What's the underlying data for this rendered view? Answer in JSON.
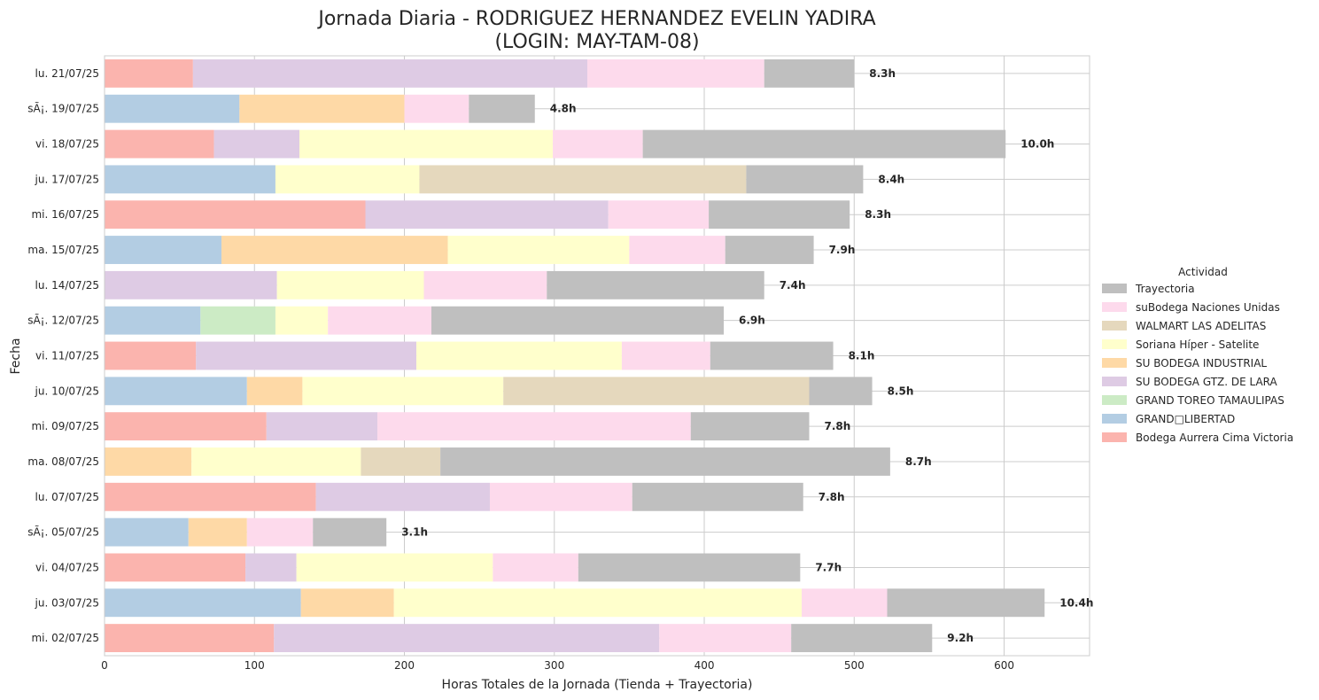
{
  "chart_data": {
    "type": "bar",
    "orientation": "horizontal",
    "stacked": true,
    "title": "Jornada Diaria - RODRIGUEZ HERNANDEZ EVELIN YADIRA",
    "subtitle": "(LOGIN: MAY-TAM-08)",
    "xlabel": "Horas Totales de la Jornada (Tienda + Trayectoria)",
    "ylabel": "Fecha",
    "xlim": [
      0,
      657
    ],
    "xticks": [
      0,
      100,
      200,
      300,
      400,
      500,
      600
    ],
    "grid": true,
    "legend": {
      "title": "Actividad",
      "placement": "center-right",
      "entries": [
        "Trayectoria",
        "suBodega Naciones Unidas",
        "WALMART LAS ADELITAS",
        "Soriana Híper - Satelite",
        "SU BODEGA INDUSTRIAL",
        "SU BODEGA GTZ. DE LARA",
        "GRAND TOREO TAMAULIPAS",
        "GRAND□LIBERTAD",
        "Bodega Aurrera Cima Victoria"
      ]
    },
    "categories": [
      "lu. 21/07/25",
      "sÃ¡. 19/07/25",
      "vi. 18/07/25",
      "ju. 17/07/25",
      "mi. 16/07/25",
      "ma. 15/07/25",
      "lu. 14/07/25",
      "sÃ¡. 12/07/25",
      "vi. 11/07/25",
      "ju. 10/07/25",
      "mi. 09/07/25",
      "ma. 08/07/25",
      "lu. 07/07/25",
      "sÃ¡. 05/07/25",
      "vi. 04/07/25",
      "ju. 03/07/25",
      "mi. 02/07/25"
    ],
    "series": [
      {
        "name": "Bodega Aurrera Cima Victoria",
        "color": "#fbb4ae",
        "values": [
          59,
          0,
          73,
          0,
          174,
          0,
          0,
          0,
          61,
          0,
          108,
          0,
          141,
          0,
          94,
          0,
          113
        ]
      },
      {
        "name": "GRAND□LIBERTAD",
        "color": "#b3cde3",
        "values": [
          0,
          90,
          0,
          114,
          0,
          78,
          0,
          64,
          0,
          95,
          0,
          0,
          0,
          56,
          0,
          131,
          0
        ]
      },
      {
        "name": "GRAND TOREO TAMAULIPAS",
        "color": "#ccebc5",
        "values": [
          0,
          0,
          0,
          0,
          0,
          0,
          0,
          50,
          0,
          0,
          0,
          0,
          0,
          0,
          0,
          0,
          0
        ]
      },
      {
        "name": "SU BODEGA GTZ. DE LARA",
        "color": "#decbe4",
        "values": [
          263,
          0,
          57,
          0,
          162,
          0,
          115,
          0,
          147,
          0,
          74,
          0,
          116,
          0,
          34,
          0,
          257
        ]
      },
      {
        "name": "SU BODEGA INDUSTRIAL",
        "color": "#fed9a6",
        "values": [
          0,
          110,
          0,
          0,
          0,
          151,
          0,
          0,
          0,
          37,
          0,
          58,
          0,
          39,
          0,
          62,
          0
        ]
      },
      {
        "name": "Soriana Híper - Satelite",
        "color": "#ffffcc",
        "values": [
          0,
          0,
          169,
          96,
          0,
          121,
          98,
          35,
          137,
          134,
          0,
          113,
          0,
          0,
          131,
          272,
          0
        ]
      },
      {
        "name": "WALMART LAS ADELITAS",
        "color": "#e5d8bd",
        "values": [
          0,
          0,
          0,
          218,
          0,
          0,
          0,
          0,
          0,
          204,
          0,
          53,
          0,
          0,
          0,
          0,
          0
        ]
      },
      {
        "name": "suBodega Naciones Unidas",
        "color": "#fddaec",
        "values": [
          118,
          43,
          60,
          0,
          67,
          64,
          82,
          69,
          59,
          0,
          209,
          0,
          95,
          44,
          57,
          57,
          88
        ]
      },
      {
        "name": "Trayectoria",
        "color": "#bfbfbf",
        "values": [
          60,
          44,
          242,
          78,
          94,
          59,
          145,
          195,
          82,
          42,
          79,
          300,
          114,
          49,
          148,
          105,
          94
        ]
      }
    ],
    "total_labels": [
      "8.3h",
      "4.8h",
      "10.0h",
      "8.4h",
      "8.3h",
      "7.9h",
      "7.4h",
      "6.9h",
      "8.1h",
      "8.5h",
      "7.8h",
      "8.7h",
      "7.8h",
      "3.1h",
      "7.7h",
      "10.4h",
      "9.2h"
    ]
  }
}
